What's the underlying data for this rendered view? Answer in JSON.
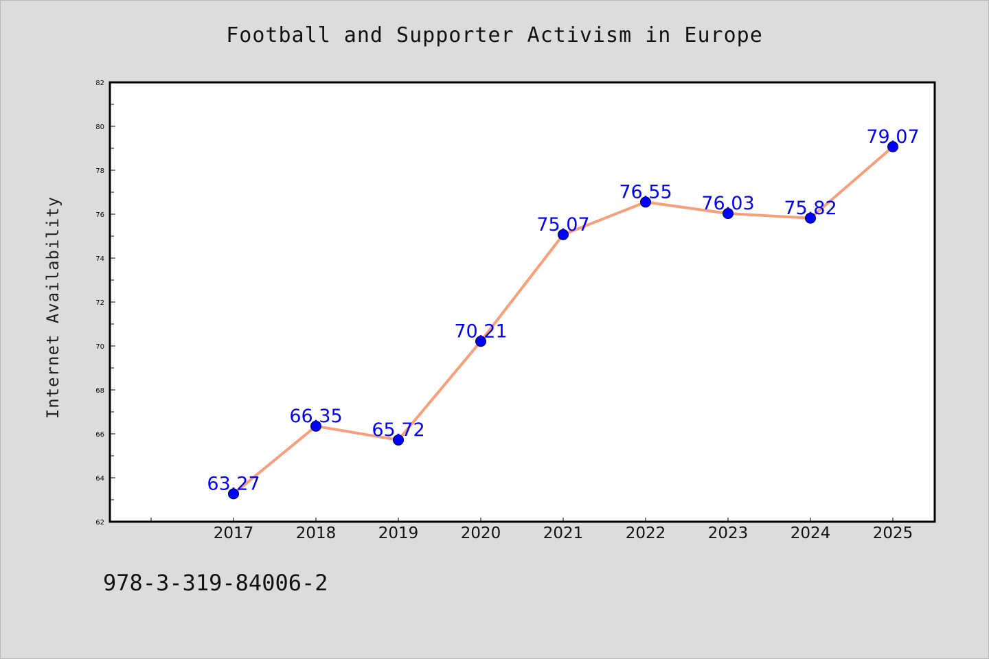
{
  "chart_data": {
    "type": "line",
    "title": "Football and Supporter Activism in Europe",
    "xlabel": "",
    "ylabel": "Internet Availability",
    "categories": [
      "2017",
      "2018",
      "2019",
      "2020",
      "2021",
      "2022",
      "2023",
      "2024",
      "2025"
    ],
    "values": [
      63.27,
      66.35,
      65.72,
      70.21,
      75.07,
      76.55,
      76.03,
      75.82,
      79.07
    ],
    "data_labels": [
      "63.27",
      "66.35",
      "65.72",
      "70.21",
      "75.07",
      "76.55",
      "76.03",
      "75.82",
      "79.07"
    ],
    "ylim": [
      62,
      82
    ],
    "yticks": [
      "62",
      "64",
      "66",
      "68",
      "70",
      "72",
      "74",
      "76",
      "78",
      "80",
      "82"
    ],
    "grid": false,
    "legend": "none",
    "colors": {
      "line": "#f5a07a",
      "marker": "#0000ff",
      "data_label": "#0000ff",
      "background": "#dcdcdc",
      "plot_background": "#ffffff"
    }
  },
  "footer": {
    "code": "978-3-319-84006-2"
  }
}
